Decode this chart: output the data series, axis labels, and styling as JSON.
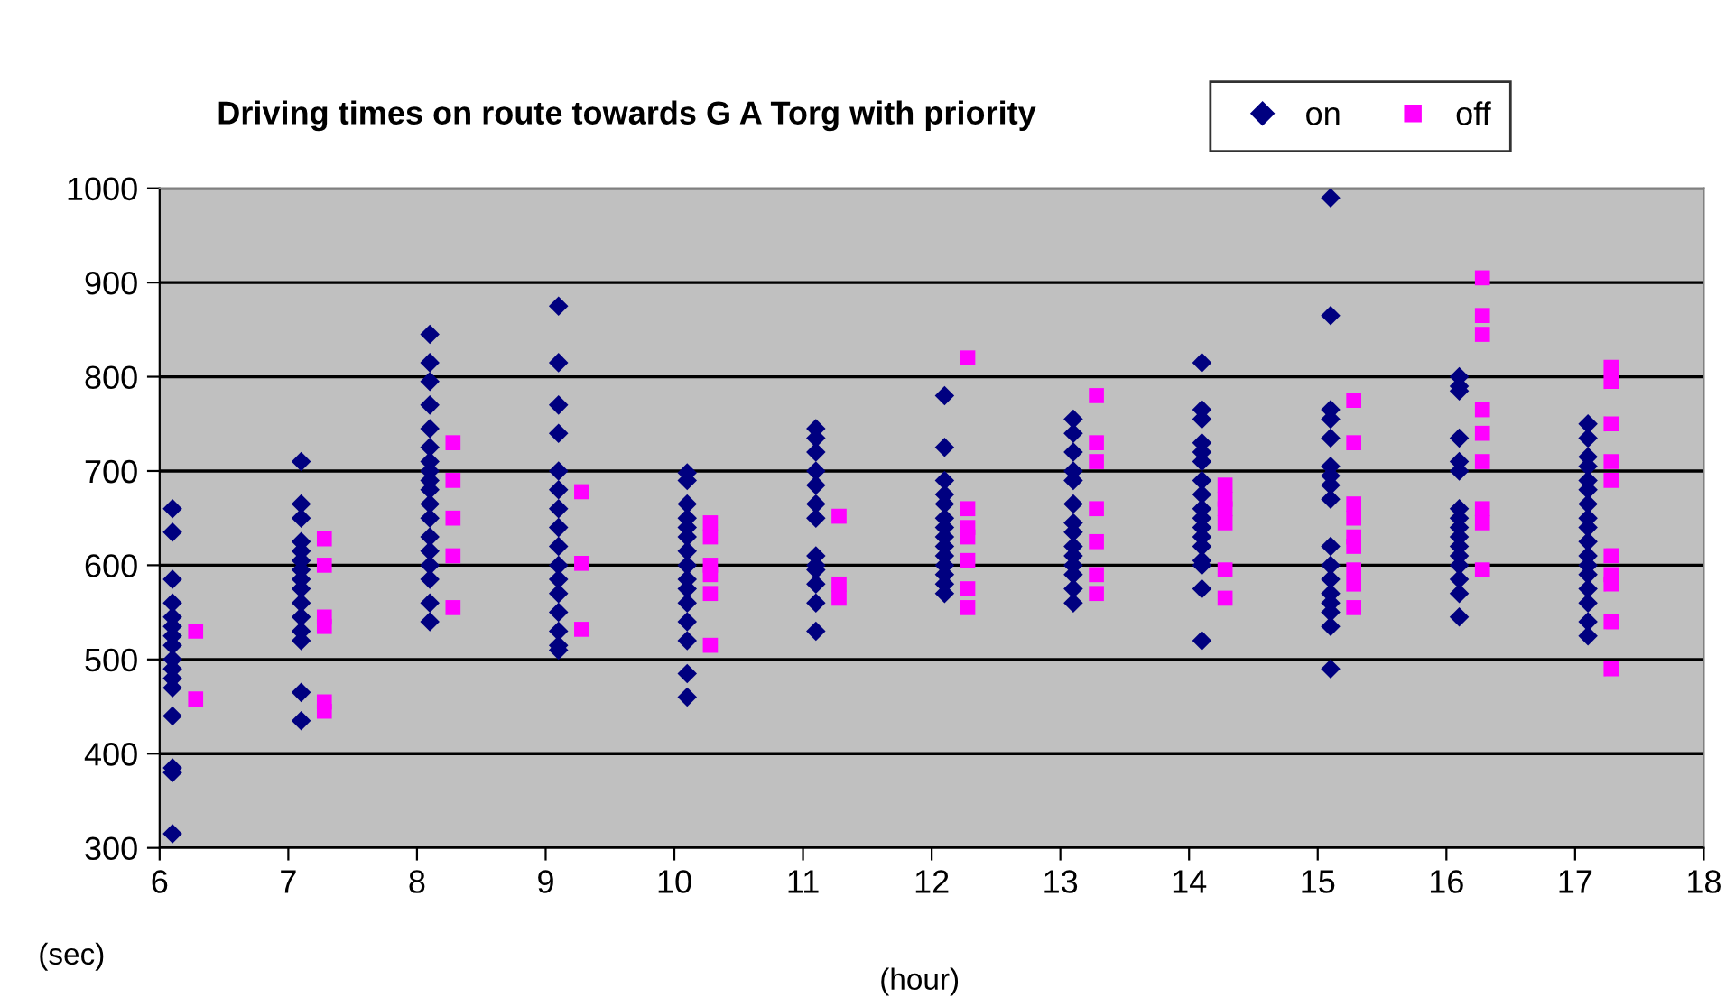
{
  "chart_data": {
    "type": "scatter",
    "title": "Driving times on route towards G A Torg with priority",
    "xlabel": "(hour)",
    "ylabel": "(sec)",
    "xlim": [
      6,
      18
    ],
    "xticks": [
      6,
      7,
      8,
      9,
      10,
      11,
      12,
      13,
      14,
      15,
      16,
      17,
      18
    ],
    "ylim": [
      300,
      1000
    ],
    "yticks": [
      300,
      400,
      500,
      600,
      700,
      800,
      900,
      1000
    ],
    "grid": "y",
    "legend": "top right",
    "series": [
      {
        "name": "on",
        "color": "#000080",
        "marker": "diamond",
        "x": [
          6.1,
          6.1,
          6.1,
          6.1,
          6.1,
          6.1,
          6.1,
          6.1,
          6.1,
          6.1,
          6.1,
          6.1,
          6.1,
          6.1,
          6.1,
          6.1,
          7.1,
          7.1,
          7.1,
          7.1,
          7.1,
          7.1,
          7.1,
          7.1,
          7.1,
          7.1,
          7.1,
          7.1,
          7.1,
          7.1,
          7.1,
          8.1,
          8.1,
          8.1,
          8.1,
          8.1,
          8.1,
          8.1,
          8.1,
          8.1,
          8.1,
          8.1,
          8.1,
          8.1,
          8.1,
          8.1,
          8.1,
          8.1,
          8.1,
          9.1,
          9.1,
          9.1,
          9.1,
          9.1,
          9.1,
          9.1,
          9.1,
          9.1,
          9.1,
          9.1,
          9.1,
          9.1,
          9.1,
          9.1,
          9.1,
          10.1,
          10.1,
          10.1,
          10.1,
          10.1,
          10.1,
          10.1,
          10.1,
          10.1,
          10.1,
          10.1,
          10.1,
          10.1,
          10.1,
          10.1,
          11.1,
          11.1,
          11.1,
          11.1,
          11.1,
          11.1,
          11.1,
          11.1,
          11.1,
          11.1,
          11.1,
          11.1,
          11.1,
          12.1,
          12.1,
          12.1,
          12.1,
          12.1,
          12.1,
          12.1,
          12.1,
          12.1,
          12.1,
          12.1,
          12.1,
          12.1,
          12.1,
          13.1,
          13.1,
          13.1,
          13.1,
          13.1,
          13.1,
          13.1,
          13.1,
          13.1,
          13.1,
          13.1,
          13.1,
          13.1,
          13.1,
          14.1,
          14.1,
          14.1,
          14.1,
          14.1,
          14.1,
          14.1,
          14.1,
          14.1,
          14.1,
          14.1,
          14.1,
          14.1,
          14.1,
          14.1,
          14.1,
          14.1,
          15.1,
          15.1,
          15.1,
          15.1,
          15.1,
          15.1,
          15.1,
          15.1,
          15.1,
          15.1,
          15.1,
          15.1,
          15.1,
          15.1,
          15.1,
          15.1,
          15.1,
          16.1,
          16.1,
          16.1,
          16.1,
          16.1,
          16.1,
          16.1,
          16.1,
          16.1,
          16.1,
          16.1,
          16.1,
          16.1,
          16.1,
          16.1,
          16.1,
          17.1,
          17.1,
          17.1,
          17.1,
          17.1,
          17.1,
          17.1,
          17.1,
          17.1,
          17.1,
          17.1,
          17.1,
          17.1,
          17.1,
          17.1,
          17.1,
          17.1
        ],
        "values": [
          660,
          635,
          585,
          560,
          545,
          535,
          525,
          515,
          500,
          490,
          480,
          470,
          440,
          385,
          380,
          315,
          710,
          665,
          650,
          625,
          615,
          605,
          595,
          585,
          575,
          560,
          545,
          530,
          520,
          465,
          435,
          845,
          815,
          795,
          770,
          745,
          725,
          710,
          700,
          690,
          680,
          665,
          650,
          630,
          615,
          600,
          585,
          560,
          540,
          875,
          815,
          770,
          740,
          700,
          680,
          660,
          640,
          620,
          600,
          585,
          570,
          550,
          530,
          515,
          510,
          698,
          690,
          665,
          650,
          640,
          630,
          615,
          600,
          585,
          575,
          560,
          540,
          520,
          485,
          460,
          745,
          735,
          720,
          700,
          685,
          665,
          650,
          610,
          600,
          595,
          580,
          560,
          530,
          780,
          725,
          690,
          675,
          665,
          650,
          640,
          630,
          620,
          610,
          600,
          590,
          580,
          570,
          755,
          740,
          720,
          700,
          690,
          665,
          645,
          635,
          620,
          610,
          600,
          590,
          575,
          560,
          815,
          765,
          755,
          730,
          720,
          710,
          690,
          675,
          660,
          650,
          640,
          630,
          620,
          605,
          600,
          575,
          520,
          990,
          865,
          765,
          755,
          735,
          705,
          695,
          685,
          670,
          620,
          600,
          585,
          570,
          560,
          550,
          535,
          490,
          800,
          790,
          785,
          735,
          710,
          700,
          660,
          650,
          640,
          630,
          620,
          610,
          600,
          585,
          570,
          545,
          750,
          735,
          715,
          705,
          690,
          680,
          665,
          650,
          640,
          625,
          610,
          600,
          590,
          575,
          560,
          540,
          525
        ]
      },
      {
        "name": "off",
        "color": "#ff00ff",
        "marker": "square",
        "x": [
          6.28,
          6.28,
          7.28,
          7.28,
          7.28,
          7.28,
          7.28,
          7.28,
          8.28,
          8.28,
          8.28,
          8.28,
          8.28,
          9.28,
          9.28,
          9.28,
          10.28,
          10.28,
          10.28,
          10.28,
          10.28,
          10.28,
          11.28,
          11.28,
          11.28,
          12.28,
          12.28,
          12.28,
          12.28,
          12.28,
          12.28,
          12.28,
          13.28,
          13.28,
          13.28,
          13.28,
          13.28,
          13.28,
          13.28,
          14.28,
          14.28,
          14.28,
          14.28,
          14.28,
          14.28,
          15.28,
          15.28,
          15.28,
          15.28,
          15.28,
          15.28,
          15.28,
          15.28,
          15.28,
          16.28,
          16.28,
          16.28,
          16.28,
          16.28,
          16.28,
          16.28,
          16.28,
          16.28,
          17.28,
          17.28,
          17.28,
          17.28,
          17.28,
          17.28,
          17.28,
          17.28,
          17.28,
          17.28
        ],
        "values": [
          530,
          458,
          628,
          600,
          545,
          535,
          455,
          445,
          730,
          690,
          650,
          610,
          555,
          678,
          602,
          532,
          645,
          630,
          600,
          590,
          570,
          515,
          652,
          580,
          565,
          820,
          660,
          640,
          630,
          605,
          575,
          555,
          780,
          730,
          710,
          660,
          625,
          590,
          570,
          685,
          670,
          660,
          645,
          595,
          565,
          775,
          730,
          665,
          650,
          630,
          620,
          595,
          580,
          555,
          905,
          865,
          845,
          765,
          740,
          710,
          660,
          645,
          595,
          810,
          795,
          750,
          710,
          690,
          610,
          590,
          580,
          540,
          490
        ]
      }
    ]
  }
}
